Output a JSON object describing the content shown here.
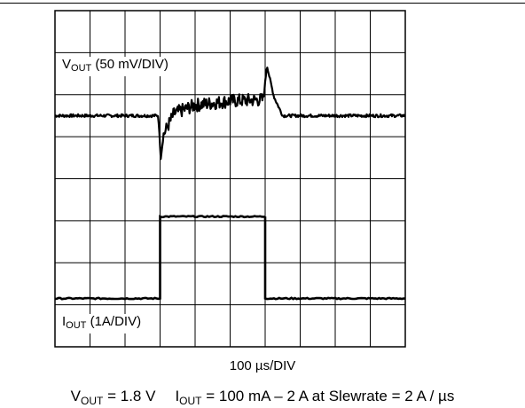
{
  "chart_data": {
    "type": "line",
    "title": "",
    "grid": true,
    "divisions": {
      "x": 10,
      "y": 8
    },
    "channels": {
      "vout": {
        "label_main": "V",
        "label_sub": "OUT",
        "label_rest": " (50 mV/DIV)",
        "scale_per_div": "50 mV/DIV",
        "baseline_div": 5.5,
        "series": [
          {
            "t_div": 0.0,
            "v_div": 0.0
          },
          {
            "t_div": 2.95,
            "v_div": 0.0
          },
          {
            "t_div": 3.02,
            "v_div": -1.0
          },
          {
            "t_div": 3.1,
            "v_div": -0.45
          },
          {
            "t_div": 3.4,
            "v_div": 0.05
          },
          {
            "t_div": 4.0,
            "v_div": 0.25
          },
          {
            "t_div": 5.0,
            "v_div": 0.35
          },
          {
            "t_div": 5.95,
            "v_div": 0.38
          },
          {
            "t_div": 6.05,
            "v_div": 1.2
          },
          {
            "t_div": 6.25,
            "v_div": 0.45
          },
          {
            "t_div": 6.5,
            "v_div": 0.0
          },
          {
            "t_div": 10.0,
            "v_div": 0.0
          }
        ]
      },
      "iout": {
        "label_main": "I",
        "label_sub": "OUT",
        "label_rest": " (1A/DIV)",
        "scale_per_div": "1A/DIV",
        "low_div": 1.15,
        "high_div": 3.1,
        "step_up_div": 3.0,
        "step_down_div": 6.0
      }
    },
    "x_scale": "100 µs/DIV"
  },
  "labels": {
    "time_scale": "100 µs/DIV",
    "cond_v_main": "V",
    "cond_v_sub": "OUT",
    "cond_v_rest": " = 1.8 V",
    "cond_i_main": "I",
    "cond_i_sub": "OUT",
    "cond_i_rest": " = 100 mA – 2 A at Slewrate = 2 A / µs"
  }
}
